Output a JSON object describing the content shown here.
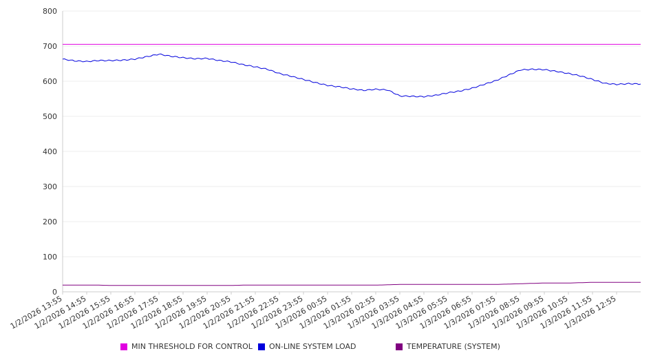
{
  "chart_data": {
    "type": "line",
    "y_ticks": [
      "0",
      "100",
      "200",
      "300",
      "400",
      "500",
      "600",
      "700",
      "800"
    ],
    "ylim": [
      0,
      800
    ],
    "grid": true,
    "legend_position": "bottom",
    "x_tick_labels": [
      "1/2/2026 13:55",
      "1/2/2026 14:55",
      "1/2/2026 15:55",
      "1/2/2026 16:55",
      "1/2/2026 17:55",
      "1/2/2026 18:55",
      "1/2/2026 19:55",
      "1/2/2026 20:55",
      "1/2/2026 21:55",
      "1/2/2026 22:55",
      "1/2/2026 23:55",
      "1/3/2026 00:55",
      "1/3/2026 01:55",
      "1/3/2026 02:55",
      "1/3/2026 03:55",
      "1/3/2026 04:55",
      "1/3/2026 05:55",
      "1/3/2026 06:55",
      "1/3/2026 07:55",
      "1/3/2026 08:55",
      "1/3/2026 09:55",
      "1/3/2026 10:55",
      "1/3/2026 11:55",
      "1/3/2026 12:55"
    ],
    "x": [
      "1/2/2026 13:55",
      "1/2/2026 14:25",
      "1/2/2026 14:55",
      "1/2/2026 15:25",
      "1/2/2026 15:55",
      "1/2/2026 16:25",
      "1/2/2026 16:55",
      "1/2/2026 17:25",
      "1/2/2026 17:55",
      "1/2/2026 18:25",
      "1/2/2026 18:55",
      "1/2/2026 19:25",
      "1/2/2026 19:55",
      "1/2/2026 20:25",
      "1/2/2026 20:55",
      "1/2/2026 21:25",
      "1/2/2026 21:55",
      "1/2/2026 22:25",
      "1/2/2026 22:55",
      "1/2/2026 23:25",
      "1/2/2026 23:55",
      "1/3/2026 00:25",
      "1/3/2026 00:55",
      "1/3/2026 01:25",
      "1/3/2026 01:55",
      "1/3/2026 02:25",
      "1/3/2026 02:55",
      "1/3/2026 03:25",
      "1/3/2026 03:55",
      "1/3/2026 04:25",
      "1/3/2026 04:55",
      "1/3/2026 05:25",
      "1/3/2026 05:55",
      "1/3/2026 06:25",
      "1/3/2026 06:55",
      "1/3/2026 07:25",
      "1/3/2026 07:55",
      "1/3/2026 08:25",
      "1/3/2026 08:55",
      "1/3/2026 09:25",
      "1/3/2026 09:55",
      "1/3/2026 10:25",
      "1/3/2026 10:55",
      "1/3/2026 11:25",
      "1/3/2026 11:55",
      "1/3/2026 12:25",
      "1/3/2026 12:55",
      "1/3/2026 13:25",
      "1/3/2026 13:55"
    ],
    "series": [
      {
        "name": "MIN THRESHOLD FOR CONTROL",
        "color": "#e100e1",
        "values": [
          705,
          705,
          705,
          705,
          705,
          705,
          705,
          705,
          705,
          705,
          705,
          705,
          705,
          705,
          705,
          705,
          705,
          705,
          705,
          705,
          705,
          705,
          705,
          705,
          705,
          705,
          705,
          705,
          705,
          705,
          705,
          705,
          705,
          705,
          705,
          705,
          705,
          705,
          705,
          705,
          705,
          705,
          705,
          705,
          705,
          705,
          705,
          705,
          705
        ]
      },
      {
        "name": "ON-LINE SYSTEM LOAD",
        "color": "#0000dd",
        "values": [
          663,
          658,
          656,
          659,
          659,
          660,
          663,
          670,
          677,
          671,
          667,
          664,
          665,
          659,
          655,
          647,
          641,
          634,
          622,
          614,
          605,
          596,
          588,
          584,
          578,
          574,
          577,
          575,
          558,
          557,
          556,
          560,
          567,
          572,
          580,
          591,
          602,
          617,
          632,
          634,
          633,
          628,
          622,
          615,
          605,
          594,
          591,
          593,
          592
        ]
      },
      {
        "name": "TEMPERATURE (SYSTEM)",
        "color": "#800080",
        "values": [
          19,
          19,
          19,
          19,
          18,
          18,
          18,
          18,
          18,
          18,
          18,
          18,
          18,
          18,
          18,
          19,
          19,
          19,
          19,
          19,
          19,
          19,
          19,
          19,
          19,
          19,
          19,
          20,
          21,
          21,
          21,
          21,
          21,
          21,
          21,
          21,
          21,
          22,
          23,
          24,
          25,
          25,
          25,
          26,
          27,
          27,
          27,
          27,
          27
        ]
      }
    ]
  }
}
